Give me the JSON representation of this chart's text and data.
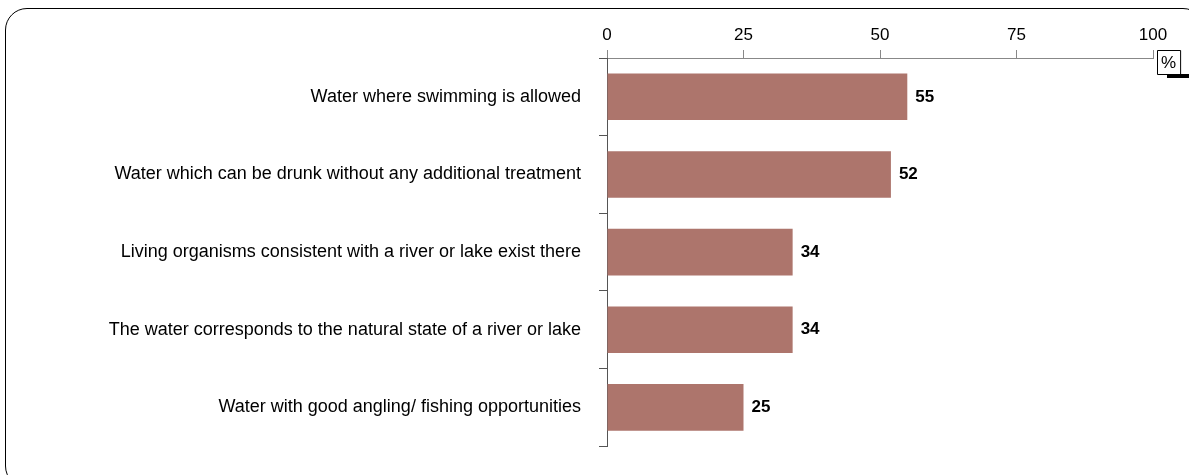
{
  "chart_data": {
    "type": "bar",
    "orientation": "horizontal",
    "xlabel": "%",
    "categories": [
      "Water where swimming is allowed",
      "Water which can be drunk without any additional treatment",
      "Living organisms consistent with a river or lake exist there",
      "The water corresponds to the natural state of a river or lake",
      "Water with good angling/ fishing opportunities"
    ],
    "values": [
      55,
      52,
      34,
      34,
      25
    ],
    "color": "#ad756c",
    "xlim": [
      0,
      100
    ],
    "xticks": [
      0,
      25,
      50,
      75,
      100
    ],
    "grid": false,
    "legend": false,
    "data_labels": true
  }
}
